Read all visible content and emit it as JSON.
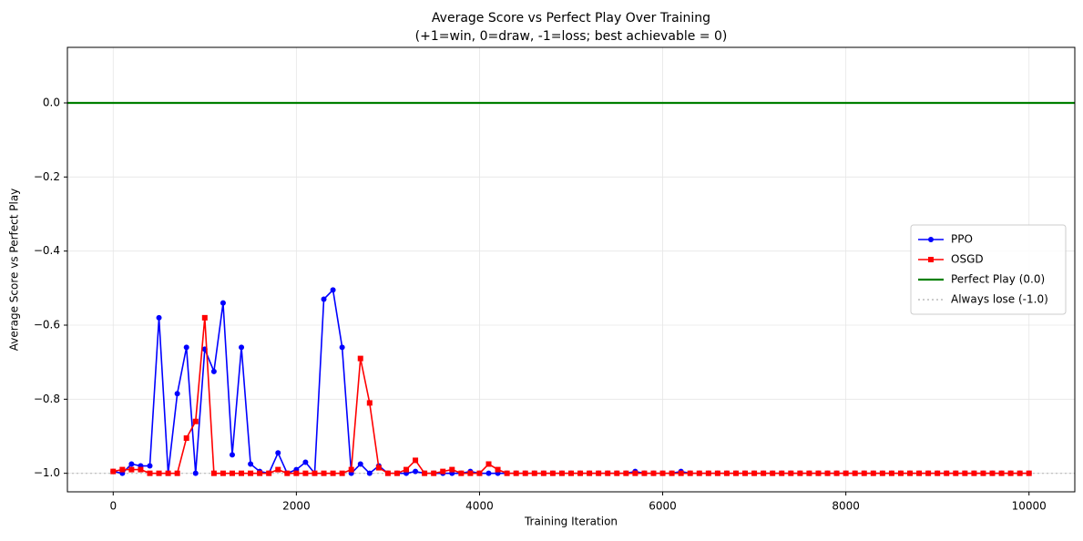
{
  "chart_data": {
    "type": "line",
    "title": "Average Score vs Perfect Play Over Training",
    "subtitle": "(+1=win, 0=draw, -1=loss; best achievable = 0)",
    "x_label": "Training Iteration",
    "y_label": "Average Score vs Perfect Play",
    "x": [
      0,
      100,
      200,
      300,
      400,
      500,
      600,
      700,
      800,
      900,
      1000,
      1100,
      1200,
      1300,
      1400,
      1500,
      1600,
      1700,
      1800,
      1900,
      2000,
      2100,
      2200,
      2300,
      2400,
      2500,
      2600,
      2700,
      2800,
      2900,
      3000,
      3100,
      3200,
      3300,
      3400,
      3500,
      3600,
      3700,
      3800,
      3900,
      4000,
      4100,
      4200,
      4300,
      4400,
      4500,
      4600,
      4700,
      4800,
      4900,
      5000,
      5100,
      5200,
      5300,
      5400,
      5500,
      5600,
      5700,
      5800,
      5900,
      6000,
      6100,
      6200,
      6300,
      6400,
      6500,
      6600,
      6700,
      6800,
      6900,
      7000,
      7100,
      7200,
      7300,
      7400,
      7500,
      7600,
      7700,
      7800,
      7900,
      8000,
      8100,
      8200,
      8300,
      8400,
      8500,
      8600,
      8700,
      8800,
      8900,
      9000,
      9100,
      9200,
      9300,
      9400,
      9500,
      9600,
      9700,
      9800,
      9900,
      10000
    ],
    "series": [
      {
        "name": "PPO",
        "color": "#0000ff",
        "marker": "circle",
        "values": [
          -0.995,
          -1,
          -0.975,
          -0.98,
          -0.98,
          -0.58,
          -1,
          -0.785,
          -0.66,
          -1,
          -0.665,
          -0.725,
          -0.54,
          -0.95,
          -0.66,
          -0.975,
          -0.995,
          -1,
          -0.945,
          -1,
          -0.99,
          -0.97,
          -1,
          -0.53,
          -0.505,
          -0.66,
          -1,
          -0.975,
          -1,
          -0.98,
          -1,
          -1,
          -1,
          -0.995,
          -1,
          -1,
          -1,
          -1,
          -1,
          -0.995,
          -1,
          -1,
          -1,
          -1,
          -1,
          -1,
          -1,
          -1,
          -1,
          -1,
          -1,
          -1,
          -1,
          -1,
          -1,
          -1,
          -1,
          -0.995,
          -1,
          -1,
          -1,
          -1,
          -0.995,
          -1,
          -1,
          -1,
          -1,
          -1,
          -1,
          -1,
          -1,
          -1,
          -1,
          -1,
          -1,
          -1,
          -1,
          -1,
          -1,
          -1,
          -1,
          -1,
          -1,
          -1,
          -1,
          -1,
          -1,
          -1,
          -1,
          -1,
          -1,
          -1,
          -1,
          -1,
          -1,
          -1,
          -1,
          -1,
          -1,
          -1,
          -1
        ]
      },
      {
        "name": "OSGD",
        "color": "#ff0000",
        "marker": "square",
        "values": [
          -0.995,
          -0.99,
          -0.99,
          -0.99,
          -1,
          -1,
          -1,
          -1,
          -0.905,
          -0.86,
          -0.58,
          -1,
          -1,
          -1,
          -1,
          -1,
          -1,
          -1,
          -0.99,
          -1,
          -1,
          -1,
          -1,
          -1,
          -1,
          -1,
          -0.99,
          -0.69,
          -0.81,
          -0.985,
          -1,
          -1,
          -0.99,
          -0.965,
          -1,
          -1,
          -0.995,
          -0.99,
          -1,
          -1,
          -1,
          -0.975,
          -0.99,
          -1,
          -1,
          -1,
          -1,
          -1,
          -1,
          -1,
          -1,
          -1,
          -1,
          -1,
          -1,
          -1,
          -1,
          -1,
          -1,
          -1,
          -1,
          -1,
          -1,
          -1,
          -1,
          -1,
          -1,
          -1,
          -1,
          -1,
          -1,
          -1,
          -1,
          -1,
          -1,
          -1,
          -1,
          -1,
          -1,
          -1,
          -1,
          -1,
          -1,
          -1,
          -1,
          -1,
          -1,
          -1,
          -1,
          -1,
          -1,
          -1,
          -1,
          -1,
          -1,
          -1,
          -1,
          -1,
          -1,
          -1,
          -1
        ]
      }
    ],
    "hlines": [
      {
        "name": "Perfect Play (0.0)",
        "value": 0,
        "color": "#008000",
        "style": "solid"
      },
      {
        "name": "Always lose (-1.0)",
        "value": -1,
        "color": "#bbbbbb",
        "style": "dotted"
      }
    ],
    "xlim": [
      -500,
      10500
    ],
    "ylim": [
      -1.05,
      0.15
    ],
    "xticks": [
      0,
      2000,
      4000,
      6000,
      8000,
      10000
    ],
    "yticks": [
      {
        "value": 0,
        "label": "0.0"
      },
      {
        "value": -0.2,
        "label": "−0.2"
      },
      {
        "value": -0.4,
        "label": "−0.4"
      },
      {
        "value": -0.6,
        "label": "−0.6"
      },
      {
        "value": -0.8,
        "label": "−0.8"
      },
      {
        "value": -1,
        "label": "−1.0"
      }
    ],
    "grid": true,
    "legend": "center right"
  }
}
